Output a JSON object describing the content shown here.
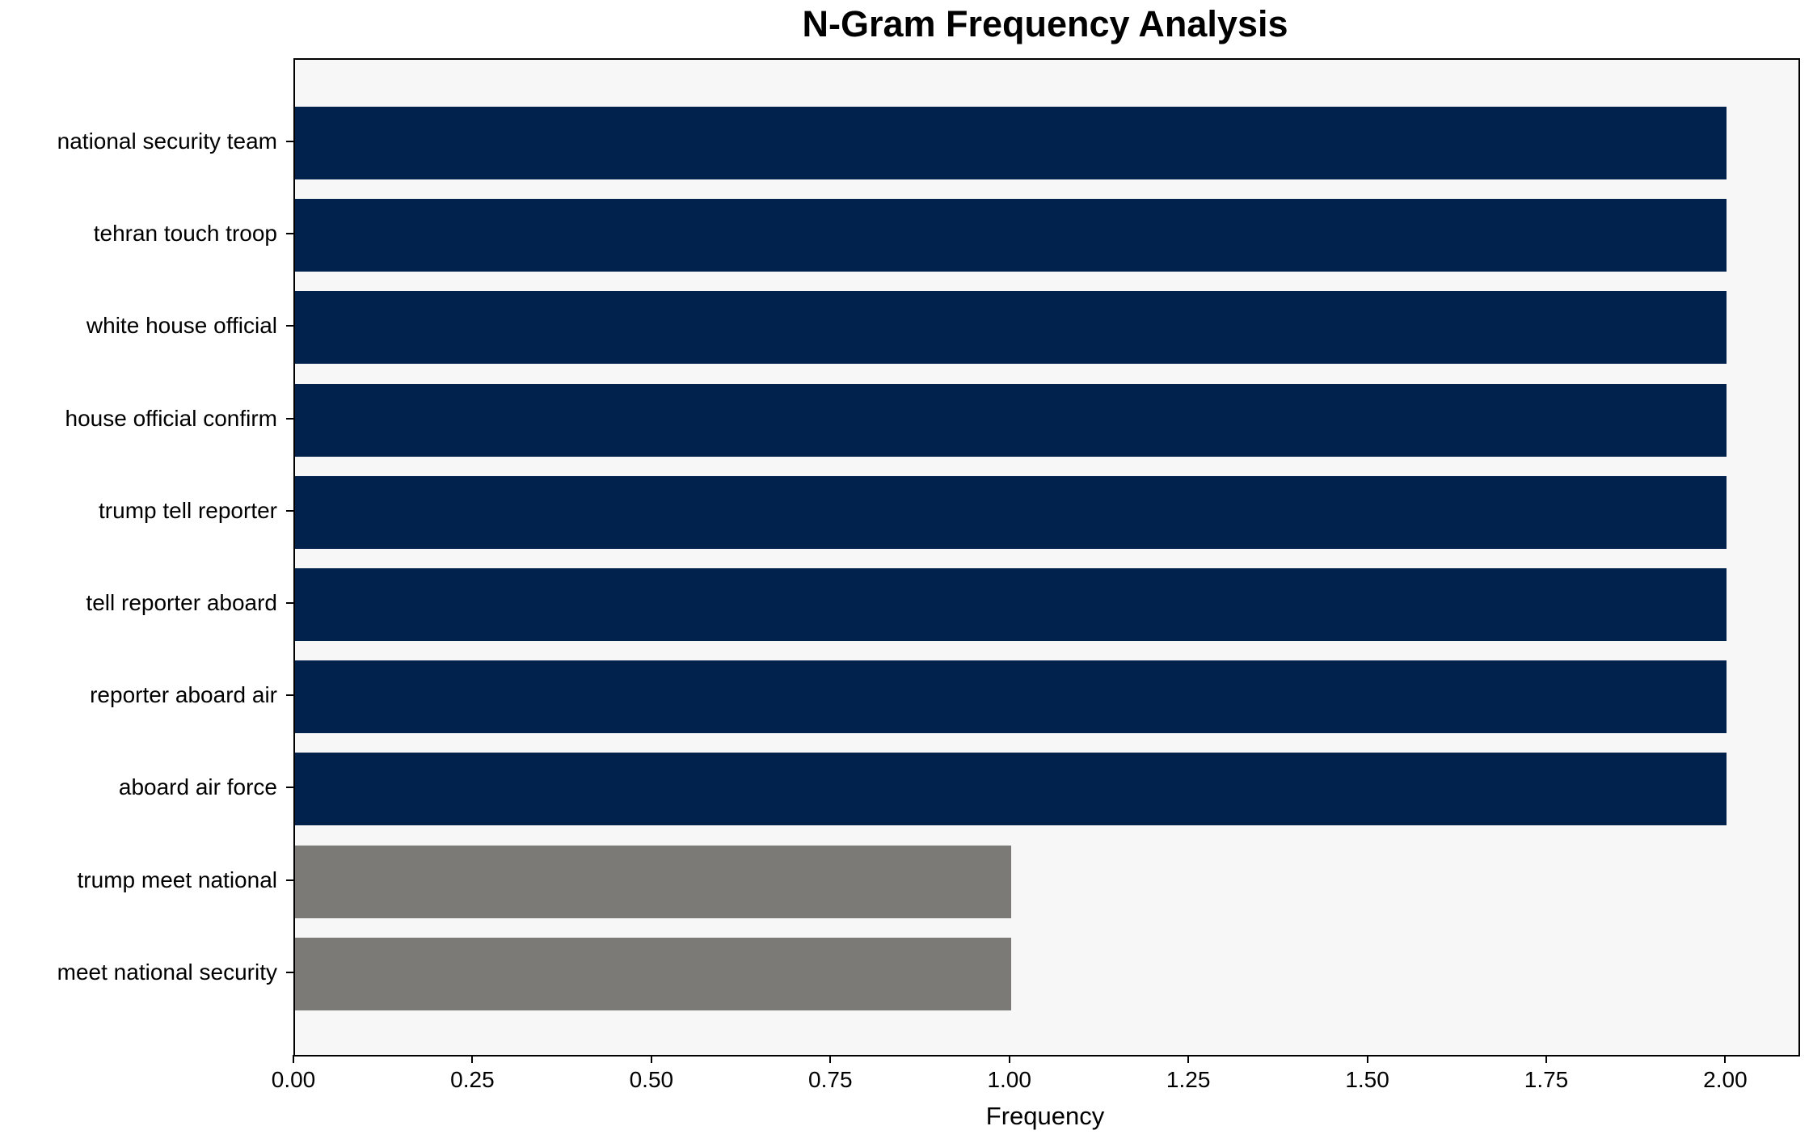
{
  "chart_data": {
    "type": "bar",
    "orientation": "horizontal",
    "title": "N-Gram Frequency Analysis",
    "xlabel": "Frequency",
    "ylabel": "",
    "categories": [
      "national security team",
      "tehran touch troop",
      "white house official",
      "house official confirm",
      "trump tell reporter",
      "tell reporter aboard",
      "reporter aboard air",
      "aboard air force",
      "trump meet national",
      "meet national security"
    ],
    "values": [
      2,
      2,
      2,
      2,
      2,
      2,
      2,
      2,
      1,
      1
    ],
    "bar_colors": [
      "#02224e",
      "#02224e",
      "#02224e",
      "#02224e",
      "#02224e",
      "#02224e",
      "#02224e",
      "#02224e",
      "#7b7a76",
      "#7b7a76"
    ],
    "xlim": [
      0,
      2.1
    ],
    "xticks": [
      0,
      0.25,
      0.5,
      0.75,
      1.0,
      1.25,
      1.5,
      1.75,
      2.0
    ],
    "xtick_labels": [
      "0.00",
      "0.25",
      "0.50",
      "0.75",
      "1.00",
      "1.25",
      "1.50",
      "1.75",
      "2.00"
    ],
    "grid": false,
    "legend": null,
    "colors": {
      "bar_high": "#02224e",
      "bar_low": "#7b7a76",
      "plot_background": "#f7f7f8",
      "figure_background": "#ffffff",
      "spine": "#000000",
      "text": "#000000"
    }
  }
}
